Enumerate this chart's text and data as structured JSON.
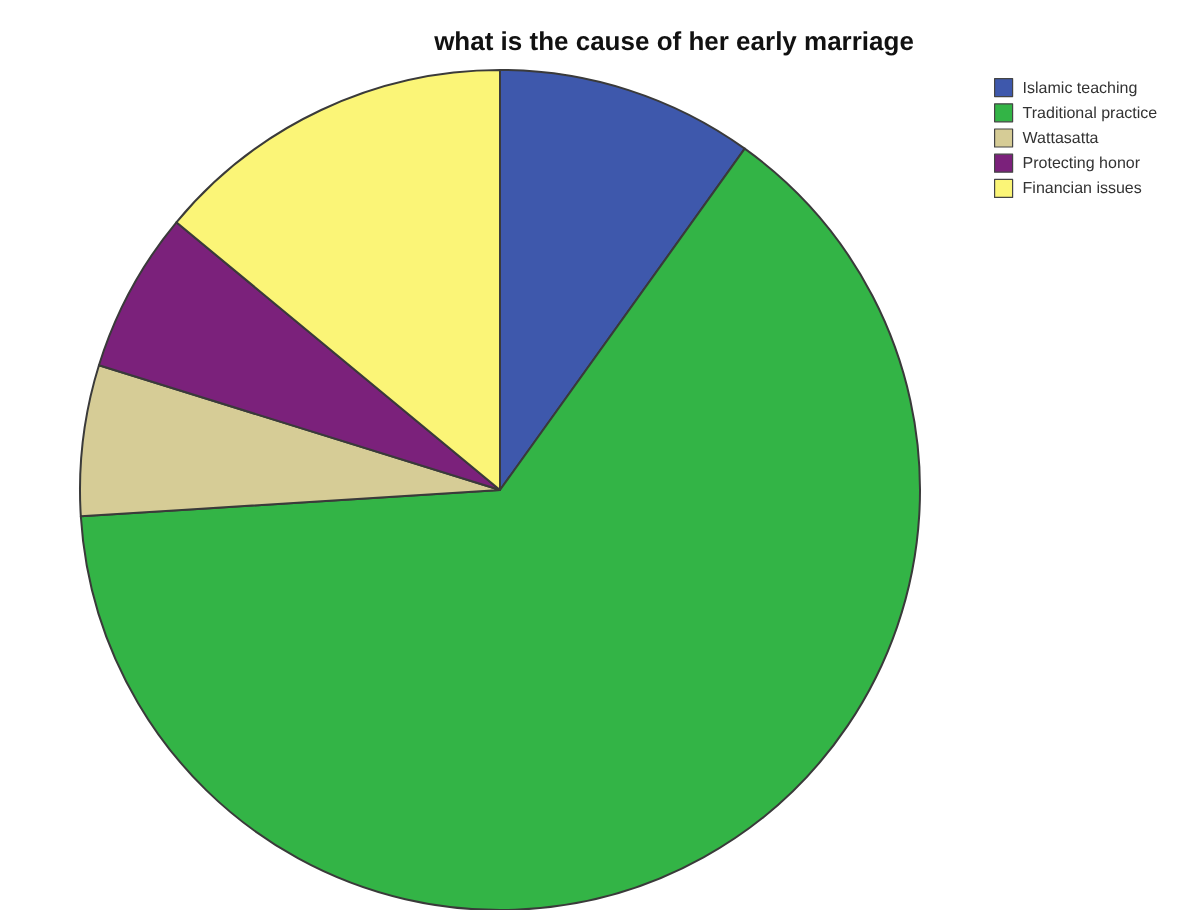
{
  "chart_data": {
    "type": "pie",
    "title": "what is the cause of her early marriage",
    "categories": [
      "Islamic teaching",
      "Traditional practice",
      "Wattasatta",
      "Protecting honor",
      "Financian issues"
    ],
    "values": [
      9.9,
      64.1,
      5.8,
      6.2,
      14.0
    ],
    "colors": [
      "#3e58ac",
      "#33b446",
      "#d6cc96",
      "#7b217b",
      "#fbf577"
    ],
    "legend": "top right"
  }
}
